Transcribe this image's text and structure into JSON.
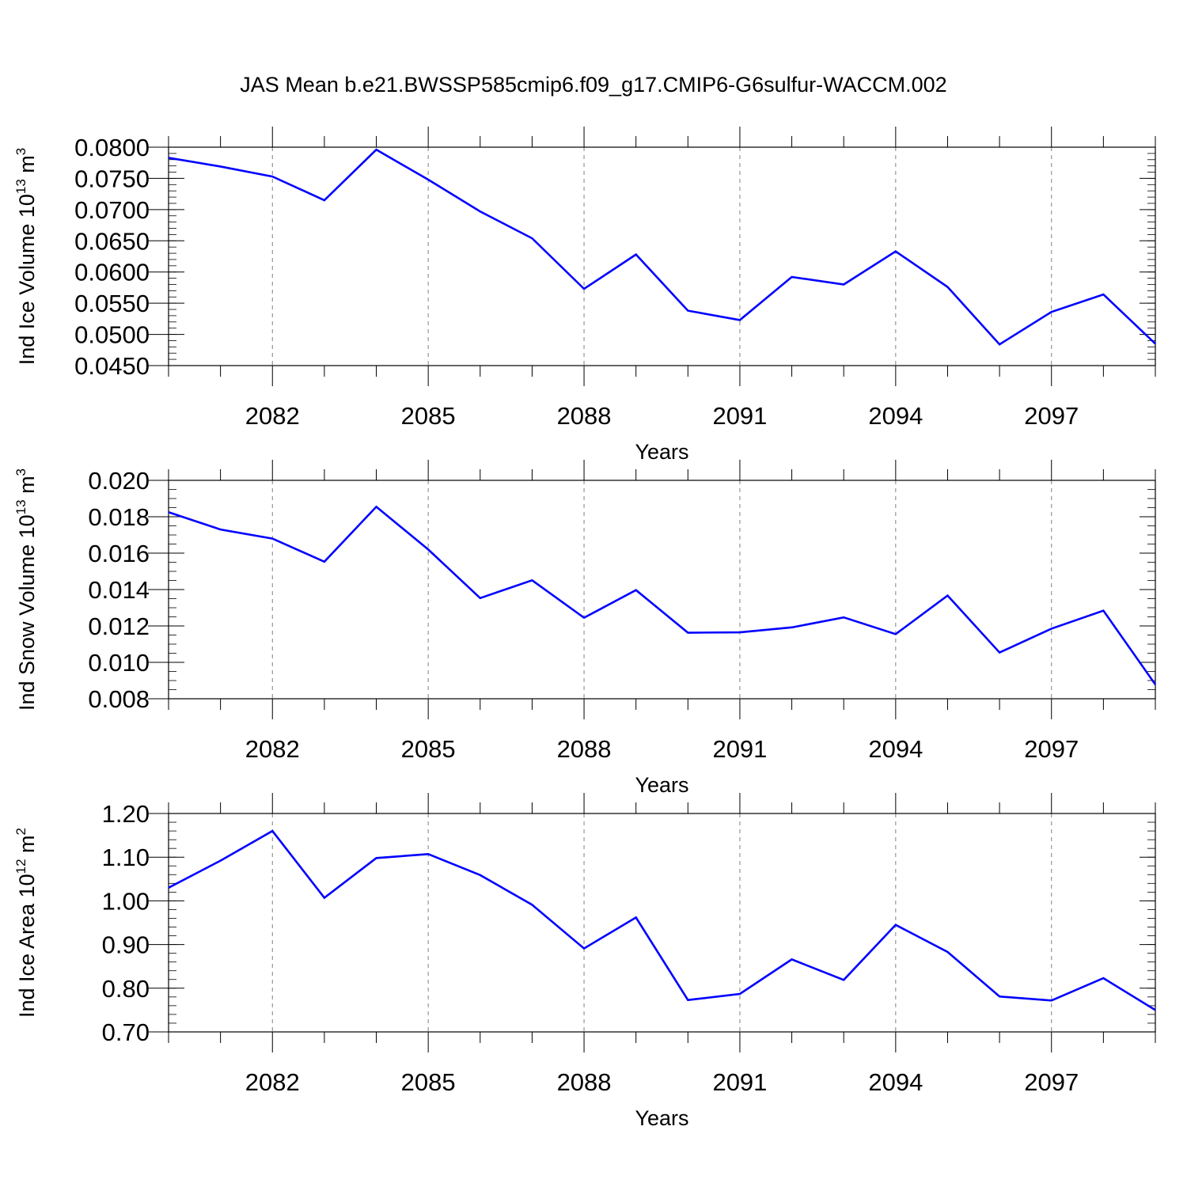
{
  "page": {
    "title": "JAS Mean b.e21.BWSSP585cmip6.f09_g17.CMIP6-G6sulfur-WACCM.002"
  },
  "colors": {
    "line": "#0000ff",
    "axis": "#000000",
    "grid": "#808080"
  },
  "chart_data": [
    {
      "type": "line",
      "ylabel_main": "Ind Ice Volume 10",
      "ylabel_exp": "13",
      "ylabel_unit": " m",
      "ylabel_unit_exp": "3",
      "xlabel": "Years",
      "xlim": [
        2080,
        2099
      ],
      "ylim": [
        0.045,
        0.08
      ],
      "x_major_ticks": [
        2082,
        2085,
        2088,
        2091,
        2094,
        2097
      ],
      "x_tick_labels": [
        "2082",
        "2085",
        "2088",
        "2091",
        "2094",
        "2097"
      ],
      "y_ticks": [
        0.045,
        0.05,
        0.055,
        0.06,
        0.065,
        0.07,
        0.075,
        0.08
      ],
      "y_tick_labels": [
        "0.0450",
        "0.0500",
        "0.0550",
        "0.0600",
        "0.0650",
        "0.0700",
        "0.0750",
        "0.0800"
      ],
      "y_minor_step": 0.001,
      "grid": true,
      "series": [
        {
          "x": [
            2080,
            2081,
            2082,
            2083,
            2084,
            2085,
            2086,
            2087,
            2088,
            2089,
            2090,
            2091,
            2092,
            2093,
            2094,
            2095,
            2096,
            2097,
            2098,
            2099
          ],
          "values": [
            0.0783,
            0.0769,
            0.0753,
            0.0715,
            0.0796,
            0.0748,
            0.0697,
            0.0654,
            0.0573,
            0.0628,
            0.0538,
            0.0523,
            0.0592,
            0.058,
            0.0633,
            0.0576,
            0.0484,
            0.0536,
            0.0564,
            0.0485
          ]
        }
      ]
    },
    {
      "type": "line",
      "ylabel_main": "Ind Snow Volume 10",
      "ylabel_exp": "13",
      "ylabel_unit": " m",
      "ylabel_unit_exp": "3",
      "xlabel": "Years",
      "xlim": [
        2080,
        2099
      ],
      "ylim": [
        0.008,
        0.02
      ],
      "x_major_ticks": [
        2082,
        2085,
        2088,
        2091,
        2094,
        2097
      ],
      "x_tick_labels": [
        "2082",
        "2085",
        "2088",
        "2091",
        "2094",
        "2097"
      ],
      "y_ticks": [
        0.008,
        0.01,
        0.012,
        0.014,
        0.016,
        0.018,
        0.02
      ],
      "y_tick_labels": [
        "0.008",
        "0.010",
        "0.012",
        "0.014",
        "0.016",
        "0.018",
        "0.020"
      ],
      "y_minor_step": 0.0005,
      "grid": true,
      "series": [
        {
          "x": [
            2080,
            2081,
            2082,
            2083,
            2084,
            2085,
            2086,
            2087,
            2088,
            2089,
            2090,
            2091,
            2092,
            2093,
            2094,
            2095,
            2096,
            2097,
            2098,
            2099
          ],
          "values": [
            0.01825,
            0.0173,
            0.0168,
            0.01553,
            0.01855,
            0.0162,
            0.01353,
            0.01451,
            0.01245,
            0.01397,
            0.01163,
            0.01165,
            0.01192,
            0.01247,
            0.01155,
            0.01367,
            0.01054,
            0.01185,
            0.01284,
            0.00878
          ]
        }
      ]
    },
    {
      "type": "line",
      "ylabel_main": "Ind Ice Area 10",
      "ylabel_exp": "12",
      "ylabel_unit": " m",
      "ylabel_unit_exp": "2",
      "xlabel": "Years",
      "xlim": [
        2080,
        2099
      ],
      "ylim": [
        0.7,
        1.2
      ],
      "x_major_ticks": [
        2082,
        2085,
        2088,
        2091,
        2094,
        2097
      ],
      "x_tick_labels": [
        "2082",
        "2085",
        "2088",
        "2091",
        "2094",
        "2097"
      ],
      "y_ticks": [
        0.7,
        0.8,
        0.9,
        1.0,
        1.1,
        1.2
      ],
      "y_tick_labels": [
        "0.70",
        "0.80",
        "0.90",
        "1.00",
        "1.10",
        "1.20"
      ],
      "y_minor_step": 0.02,
      "grid": true,
      "series": [
        {
          "x": [
            2080,
            2081,
            2082,
            2083,
            2084,
            2085,
            2086,
            2087,
            2088,
            2089,
            2090,
            2091,
            2092,
            2093,
            2094,
            2095,
            2096,
            2097,
            2098,
            2099
          ],
          "values": [
            1.03,
            1.092,
            1.16,
            1.007,
            1.098,
            1.107,
            1.059,
            0.991,
            0.891,
            0.962,
            0.773,
            0.787,
            0.866,
            0.819,
            0.945,
            0.883,
            0.781,
            0.772,
            0.823,
            0.75
          ]
        }
      ]
    }
  ]
}
